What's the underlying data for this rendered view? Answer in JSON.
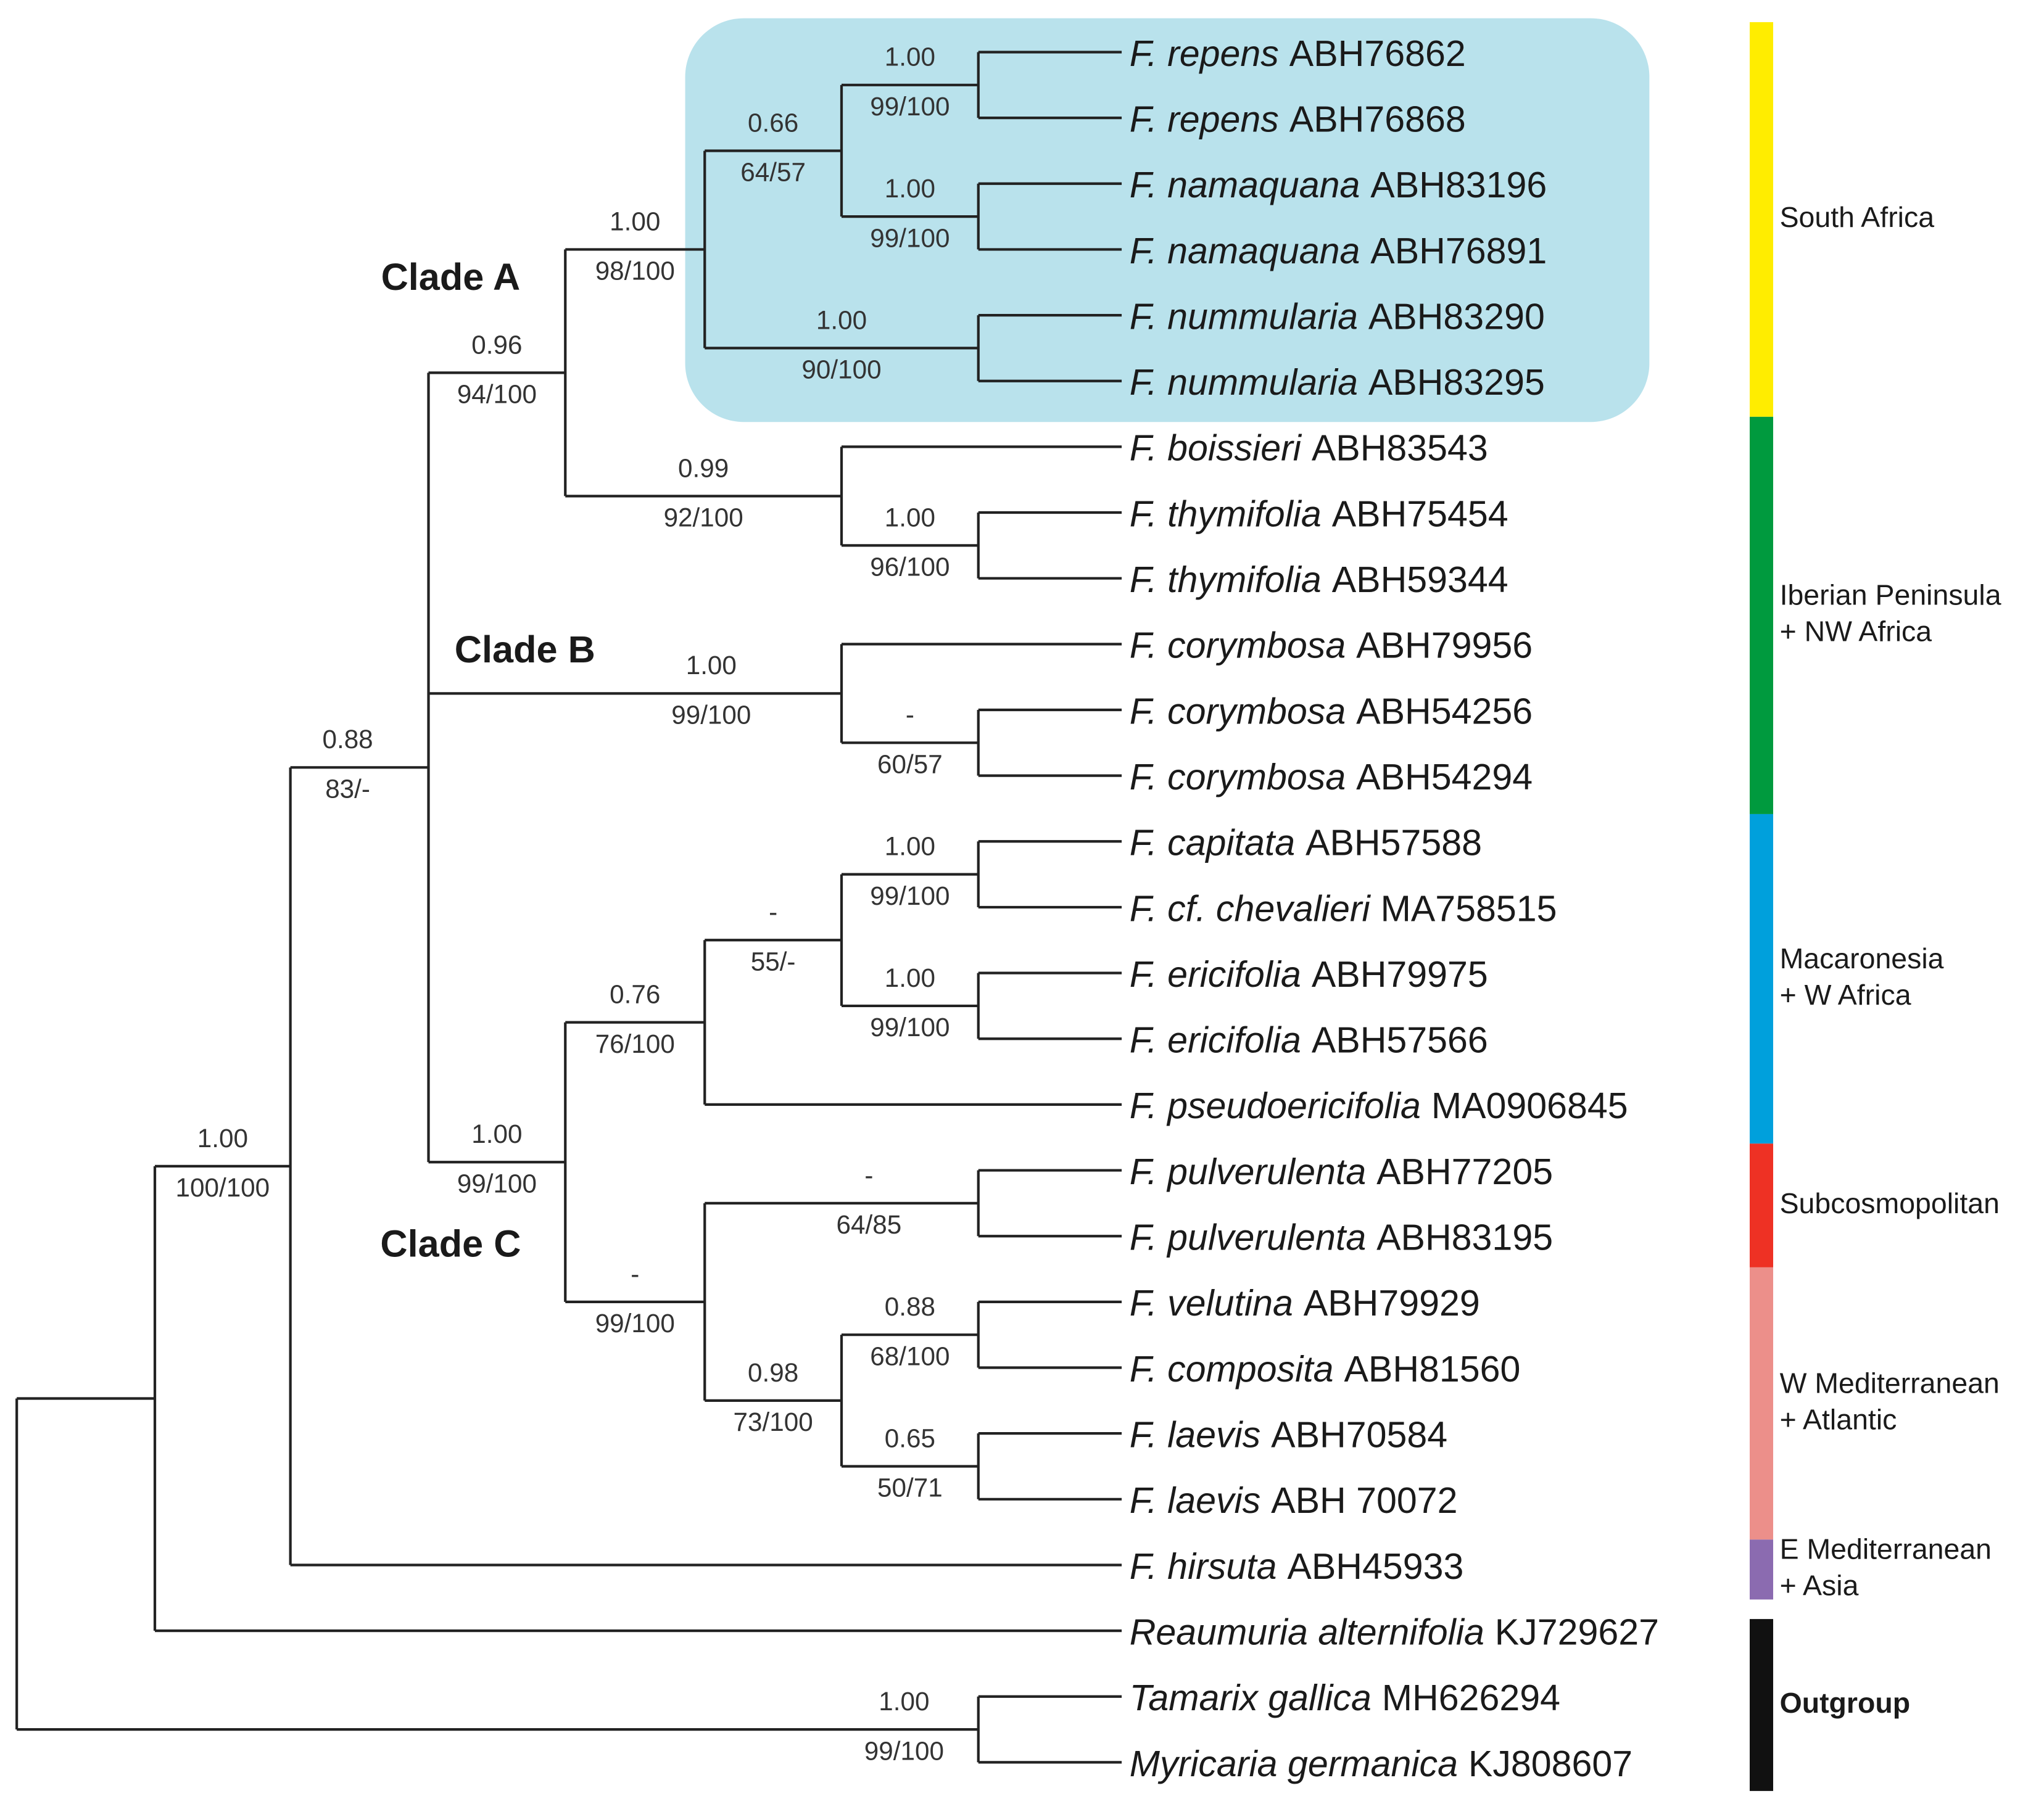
{
  "taxa": [
    {
      "name": "F. repens",
      "accession": "ABH76862"
    },
    {
      "name": "F. repens",
      "accession": "ABH76868"
    },
    {
      "name": "F. namaquana",
      "accession": "ABH83196"
    },
    {
      "name": "F. namaquana",
      "accession": "ABH76891"
    },
    {
      "name": "F. nummularia",
      "accession": "ABH83290"
    },
    {
      "name": "F. nummularia",
      "accession": "ABH83295"
    },
    {
      "name": "F. boissieri",
      "accession": "ABH83543"
    },
    {
      "name": "F. thymifolia",
      "accession": "ABH75454"
    },
    {
      "name": "F. thymifolia",
      "accession": "ABH59344"
    },
    {
      "name": "F. corymbosa",
      "accession": "ABH79956"
    },
    {
      "name": "F. corymbosa",
      "accession": "ABH54256"
    },
    {
      "name": "F. corymbosa",
      "accession": "ABH54294"
    },
    {
      "name": "F. capitata",
      "accession": "ABH57588"
    },
    {
      "name": "F. cf. chevalieri",
      "accession": "MA758515"
    },
    {
      "name": "F. ericifolia",
      "accession": "ABH79975"
    },
    {
      "name": "F. ericifolia",
      "accession": "ABH57566"
    },
    {
      "name": "F. pseudoericifolia",
      "accession": "MA0906845"
    },
    {
      "name": "F. pulverulenta",
      "accession": "ABH77205"
    },
    {
      "name": "F. pulverulenta",
      "accession": "ABH83195"
    },
    {
      "name": "F. velutina",
      "accession": "ABH79929"
    },
    {
      "name": "F. composita",
      "accession": "ABH81560"
    },
    {
      "name": "F. laevis",
      "accession": "ABH70584"
    },
    {
      "name": "F. laevis",
      "accession": "ABH 70072"
    },
    {
      "name": "F. hirsuta",
      "accession": "ABH45933"
    },
    {
      "name": "Reaumuria alternifolia",
      "accession": "KJ729627"
    },
    {
      "name": "Tamarix gallica",
      "accession": "MH626294"
    },
    {
      "name": "Myricaria germanica",
      "accession": "KJ808607"
    }
  ],
  "supports": [
    {
      "pp": "1.00",
      "bs": "99/100"
    },
    {
      "pp": "1.00",
      "bs": "99/100"
    },
    {
      "pp": "0.66",
      "bs": "64/57"
    },
    {
      "pp": "1.00",
      "bs": "90/100"
    },
    {
      "pp": "1.00",
      "bs": "98/100"
    },
    {
      "pp": "1.00",
      "bs": "96/100"
    },
    {
      "pp": "0.99",
      "bs": "92/100"
    },
    {
      "pp": "0.96",
      "bs": "94/100"
    },
    {
      "pp": "-",
      "bs": "60/57"
    },
    {
      "pp": "1.00",
      "bs": "99/100"
    },
    {
      "pp": "1.00",
      "bs": "99/100"
    },
    {
      "pp": "1.00",
      "bs": "99/100"
    },
    {
      "pp": "-",
      "bs": "55/-"
    },
    {
      "pp": "0.76",
      "bs": "76/100"
    },
    {
      "pp": "-",
      "bs": "64/85"
    },
    {
      "pp": "0.88",
      "bs": "68/100"
    },
    {
      "pp": "0.65",
      "bs": "50/71"
    },
    {
      "pp": "0.98",
      "bs": "73/100"
    },
    {
      "pp": "-",
      "bs": "99/100"
    },
    {
      "pp": "1.00",
      "bs": "99/100"
    },
    {
      "pp": "0.88",
      "bs": "83/-"
    },
    {
      "pp": "1.00",
      "bs": "100/100"
    },
    {
      "pp": "1.00",
      "bs": "99/100"
    }
  ],
  "clades": [
    "Clade A",
    "Clade B",
    "Clade C"
  ],
  "regions": [
    {
      "lines": [
        "South Africa"
      ],
      "color": "#ffed00"
    },
    {
      "lines": [
        "Iberian Peninsula",
        "+ NW Africa"
      ],
      "color": "#009a3e"
    },
    {
      "lines": [
        "Macaronesia",
        "+ W Africa"
      ],
      "color": "#00a0dc"
    },
    {
      "lines": [
        "Subcosmopolitan"
      ],
      "color": "#ee3124"
    },
    {
      "lines": [
        "W Mediterranean",
        "+ Atlantic"
      ],
      "color": "#ec8f8a"
    },
    {
      "lines": [
        "E Mediterranean",
        "+ Asia"
      ],
      "color": "#8b6bb0"
    },
    {
      "lines": [
        "Outgroup"
      ],
      "color": "#111111"
    }
  ]
}
